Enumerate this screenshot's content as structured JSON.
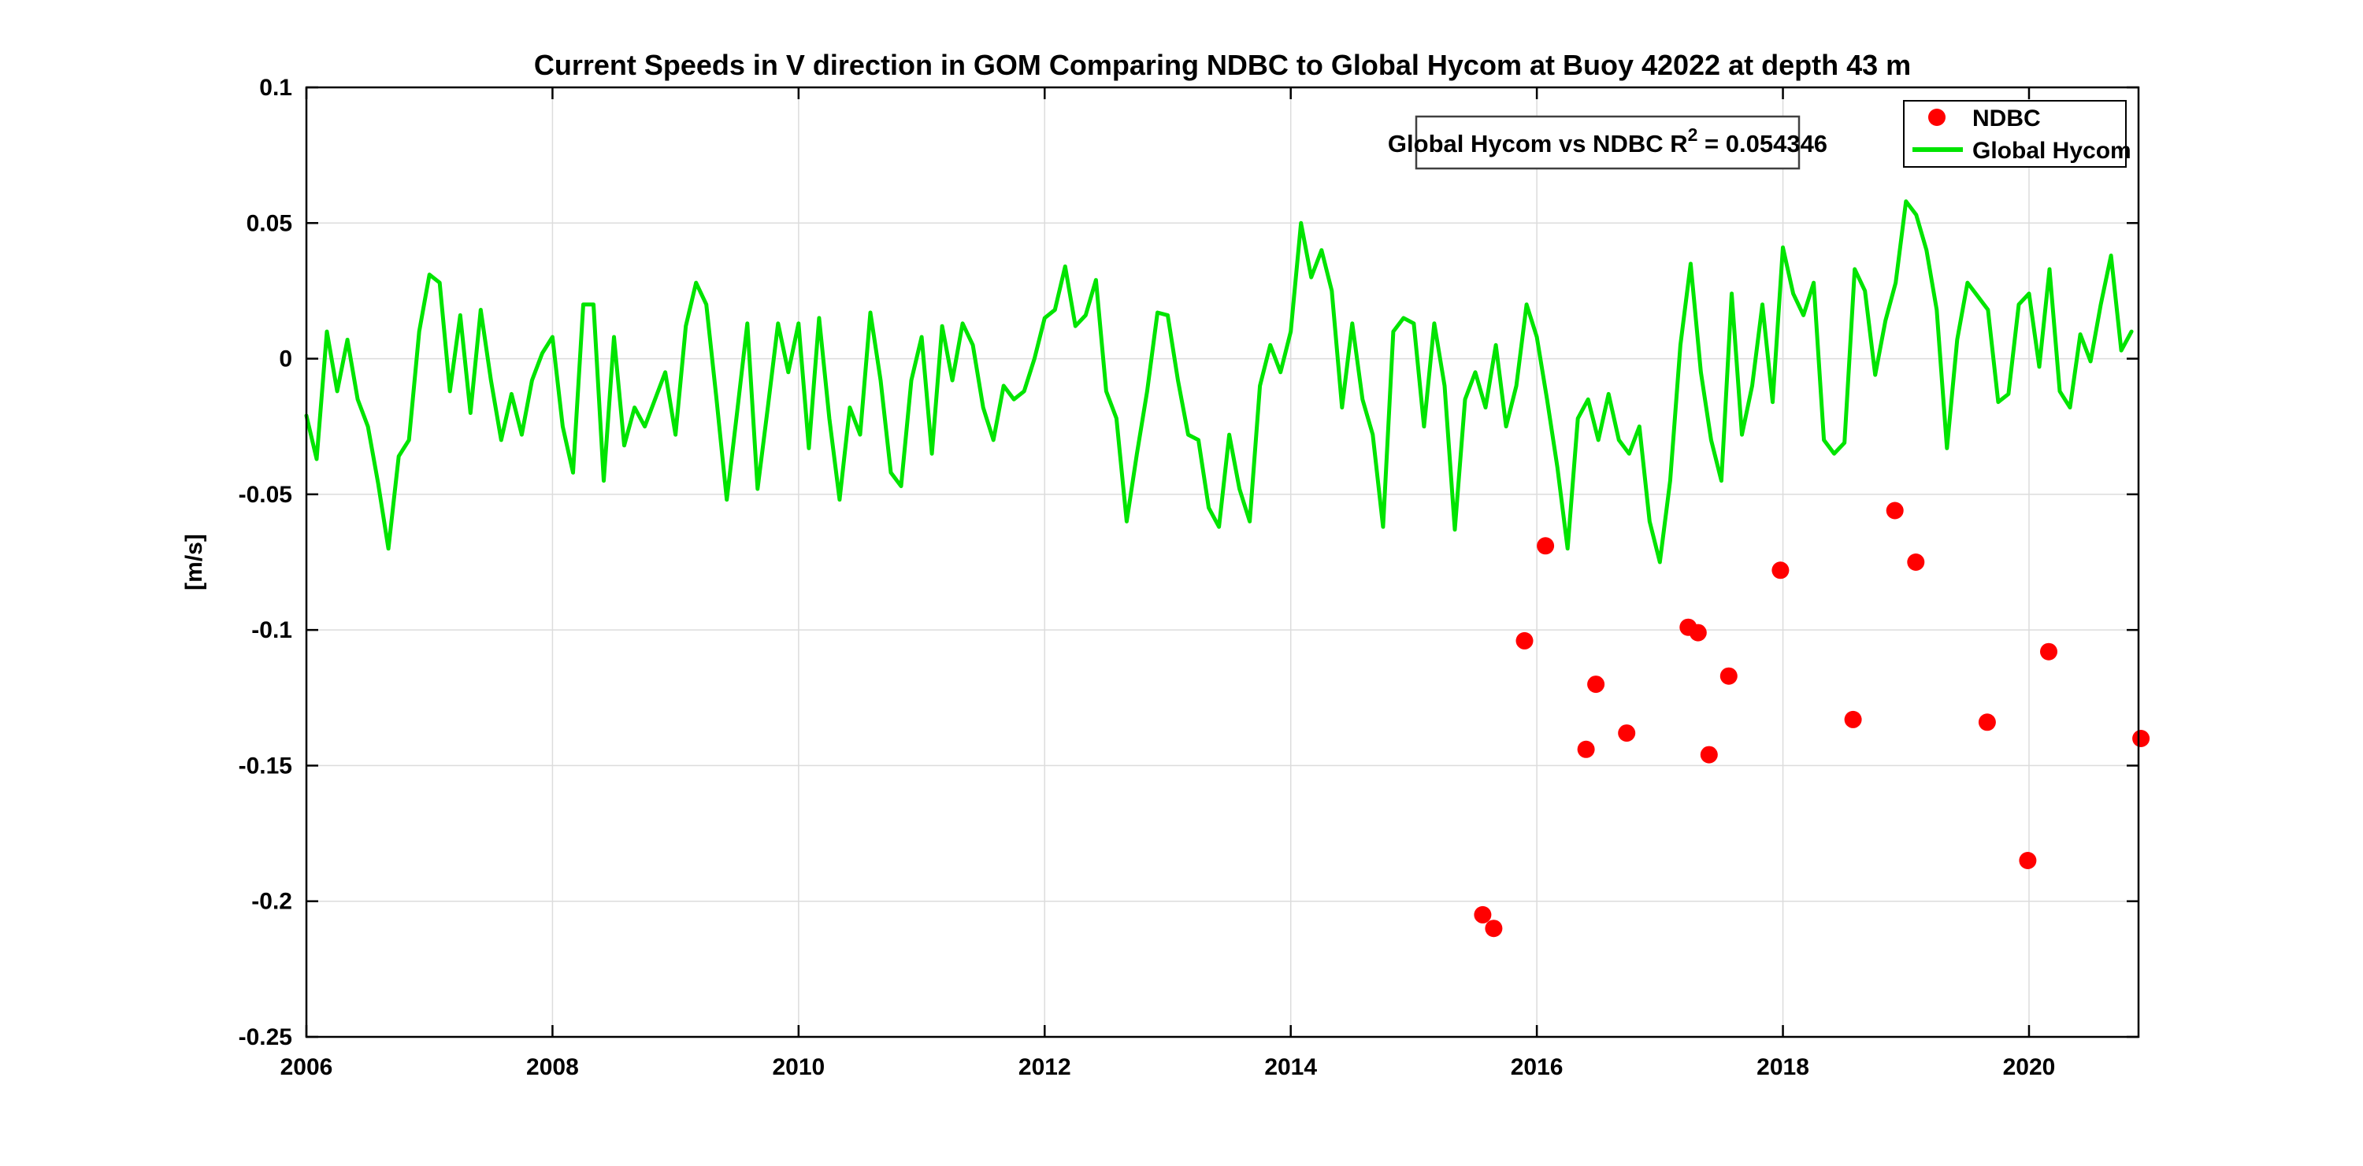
{
  "title": "Current Speeds in V direction in GOM Comparing NDBC to Global Hycom at Buoy  42022  at depth  43 m",
  "annotation": {
    "text_main": "Global Hycom vs NDBC R",
    "text_sup": "2",
    "text_value": " = 0.054346"
  },
  "legend": {
    "items": [
      {
        "label": "NDBC",
        "type": "marker",
        "color": "#ff0000"
      },
      {
        "label": "Global Hycom",
        "type": "line",
        "color": "#00e400"
      }
    ]
  },
  "colors": {
    "ndbc": "#ff0000",
    "hycom": "#00e400",
    "grid": "#dcdcdc",
    "frame": "#000000",
    "annotation_border": "#404040",
    "text": "#000000",
    "background": "#ffffff"
  },
  "chart_data": {
    "type": "line",
    "title": "Current Speeds in V direction in GOM Comparing NDBC to Global Hycom at Buoy  42022  at depth  43 m",
    "xlabel": "",
    "ylabel": "[m/s]",
    "xlim": [
      2006,
      2020.89
    ],
    "ylim": [
      -0.25,
      0.1
    ],
    "xticks": [
      2006,
      2008,
      2010,
      2012,
      2014,
      2016,
      2018,
      2020
    ],
    "xtick_labels": [
      "2006",
      "2008",
      "2010",
      "2012",
      "2014",
      "2016",
      "2018",
      "2020"
    ],
    "yticks": [
      0.1,
      0.05,
      0,
      -0.05,
      -0.1,
      -0.15,
      -0.2,
      -0.25
    ],
    "ytick_labels": [
      "0.1",
      "0.05",
      "0",
      "-0.05",
      "-0.1",
      "-0.15",
      "-0.2",
      "-0.25"
    ],
    "grid": true,
    "legend_position": "northeast",
    "r_squared": 0.054346,
    "series": [
      {
        "name": "Global Hycom",
        "type": "line",
        "color": "#00e400",
        "x_start": 2006.0,
        "x_step_years": 0.0833333,
        "values": [
          -0.021,
          -0.037,
          0.01,
          -0.012,
          0.007,
          -0.015,
          -0.025,
          -0.046,
          -0.07,
          -0.036,
          -0.03,
          0.01,
          0.031,
          0.028,
          -0.012,
          0.016,
          -0.02,
          0.018,
          -0.008,
          -0.03,
          -0.013,
          -0.028,
          -0.008,
          0.002,
          0.008,
          -0.025,
          -0.042,
          0.02,
          0.02,
          -0.045,
          0.008,
          -0.032,
          -0.018,
          -0.025,
          -0.015,
          -0.005,
          -0.028,
          0.012,
          0.028,
          0.02,
          -0.015,
          -0.052,
          -0.02,
          0.013,
          -0.048,
          -0.018,
          0.013,
          -0.005,
          0.013,
          -0.033,
          0.015,
          -0.022,
          -0.052,
          -0.018,
          -0.028,
          0.017,
          -0.008,
          -0.042,
          -0.047,
          -0.008,
          0.008,
          -0.035,
          0.012,
          -0.008,
          0.013,
          0.005,
          -0.018,
          -0.03,
          -0.01,
          -0.015,
          -0.012,
          0.0,
          0.015,
          0.018,
          0.034,
          0.012,
          0.016,
          0.029,
          -0.012,
          -0.022,
          -0.06,
          -0.035,
          -0.012,
          0.017,
          0.016,
          -0.008,
          -0.028,
          -0.03,
          -0.055,
          -0.062,
          -0.028,
          -0.048,
          -0.06,
          -0.01,
          0.005,
          -0.005,
          0.01,
          0.05,
          0.03,
          0.04,
          0.025,
          -0.018,
          0.013,
          -0.015,
          -0.028,
          -0.062,
          0.01,
          0.015,
          0.013,
          -0.025,
          0.013,
          -0.01,
          -0.063,
          -0.015,
          -0.005,
          -0.018,
          0.005,
          -0.025,
          -0.01,
          0.02,
          0.008,
          -0.015,
          -0.04,
          -0.07,
          -0.022,
          -0.015,
          -0.03,
          -0.013,
          -0.03,
          -0.035,
          -0.025,
          -0.06,
          -0.075,
          -0.045,
          0.005,
          0.035,
          -0.005,
          -0.03,
          -0.045,
          0.024,
          -0.028,
          -0.01,
          0.02,
          -0.016,
          0.041,
          0.024,
          0.016,
          0.028,
          -0.03,
          -0.035,
          -0.031,
          0.033,
          0.025,
          -0.006,
          0.014,
          0.028,
          0.058,
          0.053,
          0.04,
          0.018,
          -0.033,
          0.007,
          0.028,
          0.023,
          0.018,
          -0.016,
          -0.013,
          0.02,
          0.024,
          -0.003,
          0.033,
          -0.012,
          -0.018,
          0.009,
          -0.001,
          0.02,
          0.038,
          0.003,
          0.01
        ]
      },
      {
        "name": "NDBC",
        "type": "scatter",
        "color": "#ff0000",
        "points": [
          [
            2015.56,
            -0.205
          ],
          [
            2015.65,
            -0.21
          ],
          [
            2015.9,
            -0.104
          ],
          [
            2016.07,
            -0.069
          ],
          [
            2016.4,
            -0.144
          ],
          [
            2016.48,
            -0.12
          ],
          [
            2016.73,
            -0.138
          ],
          [
            2017.23,
            -0.099
          ],
          [
            2017.31,
            -0.101
          ],
          [
            2017.4,
            -0.146
          ],
          [
            2017.56,
            -0.117
          ],
          [
            2017.98,
            -0.078
          ],
          [
            2018.57,
            -0.133
          ],
          [
            2018.91,
            -0.056
          ],
          [
            2019.08,
            -0.075
          ],
          [
            2019.66,
            -0.134
          ],
          [
            2019.99,
            -0.185
          ],
          [
            2020.16,
            -0.108
          ],
          [
            2020.91,
            -0.14
          ]
        ]
      }
    ]
  }
}
